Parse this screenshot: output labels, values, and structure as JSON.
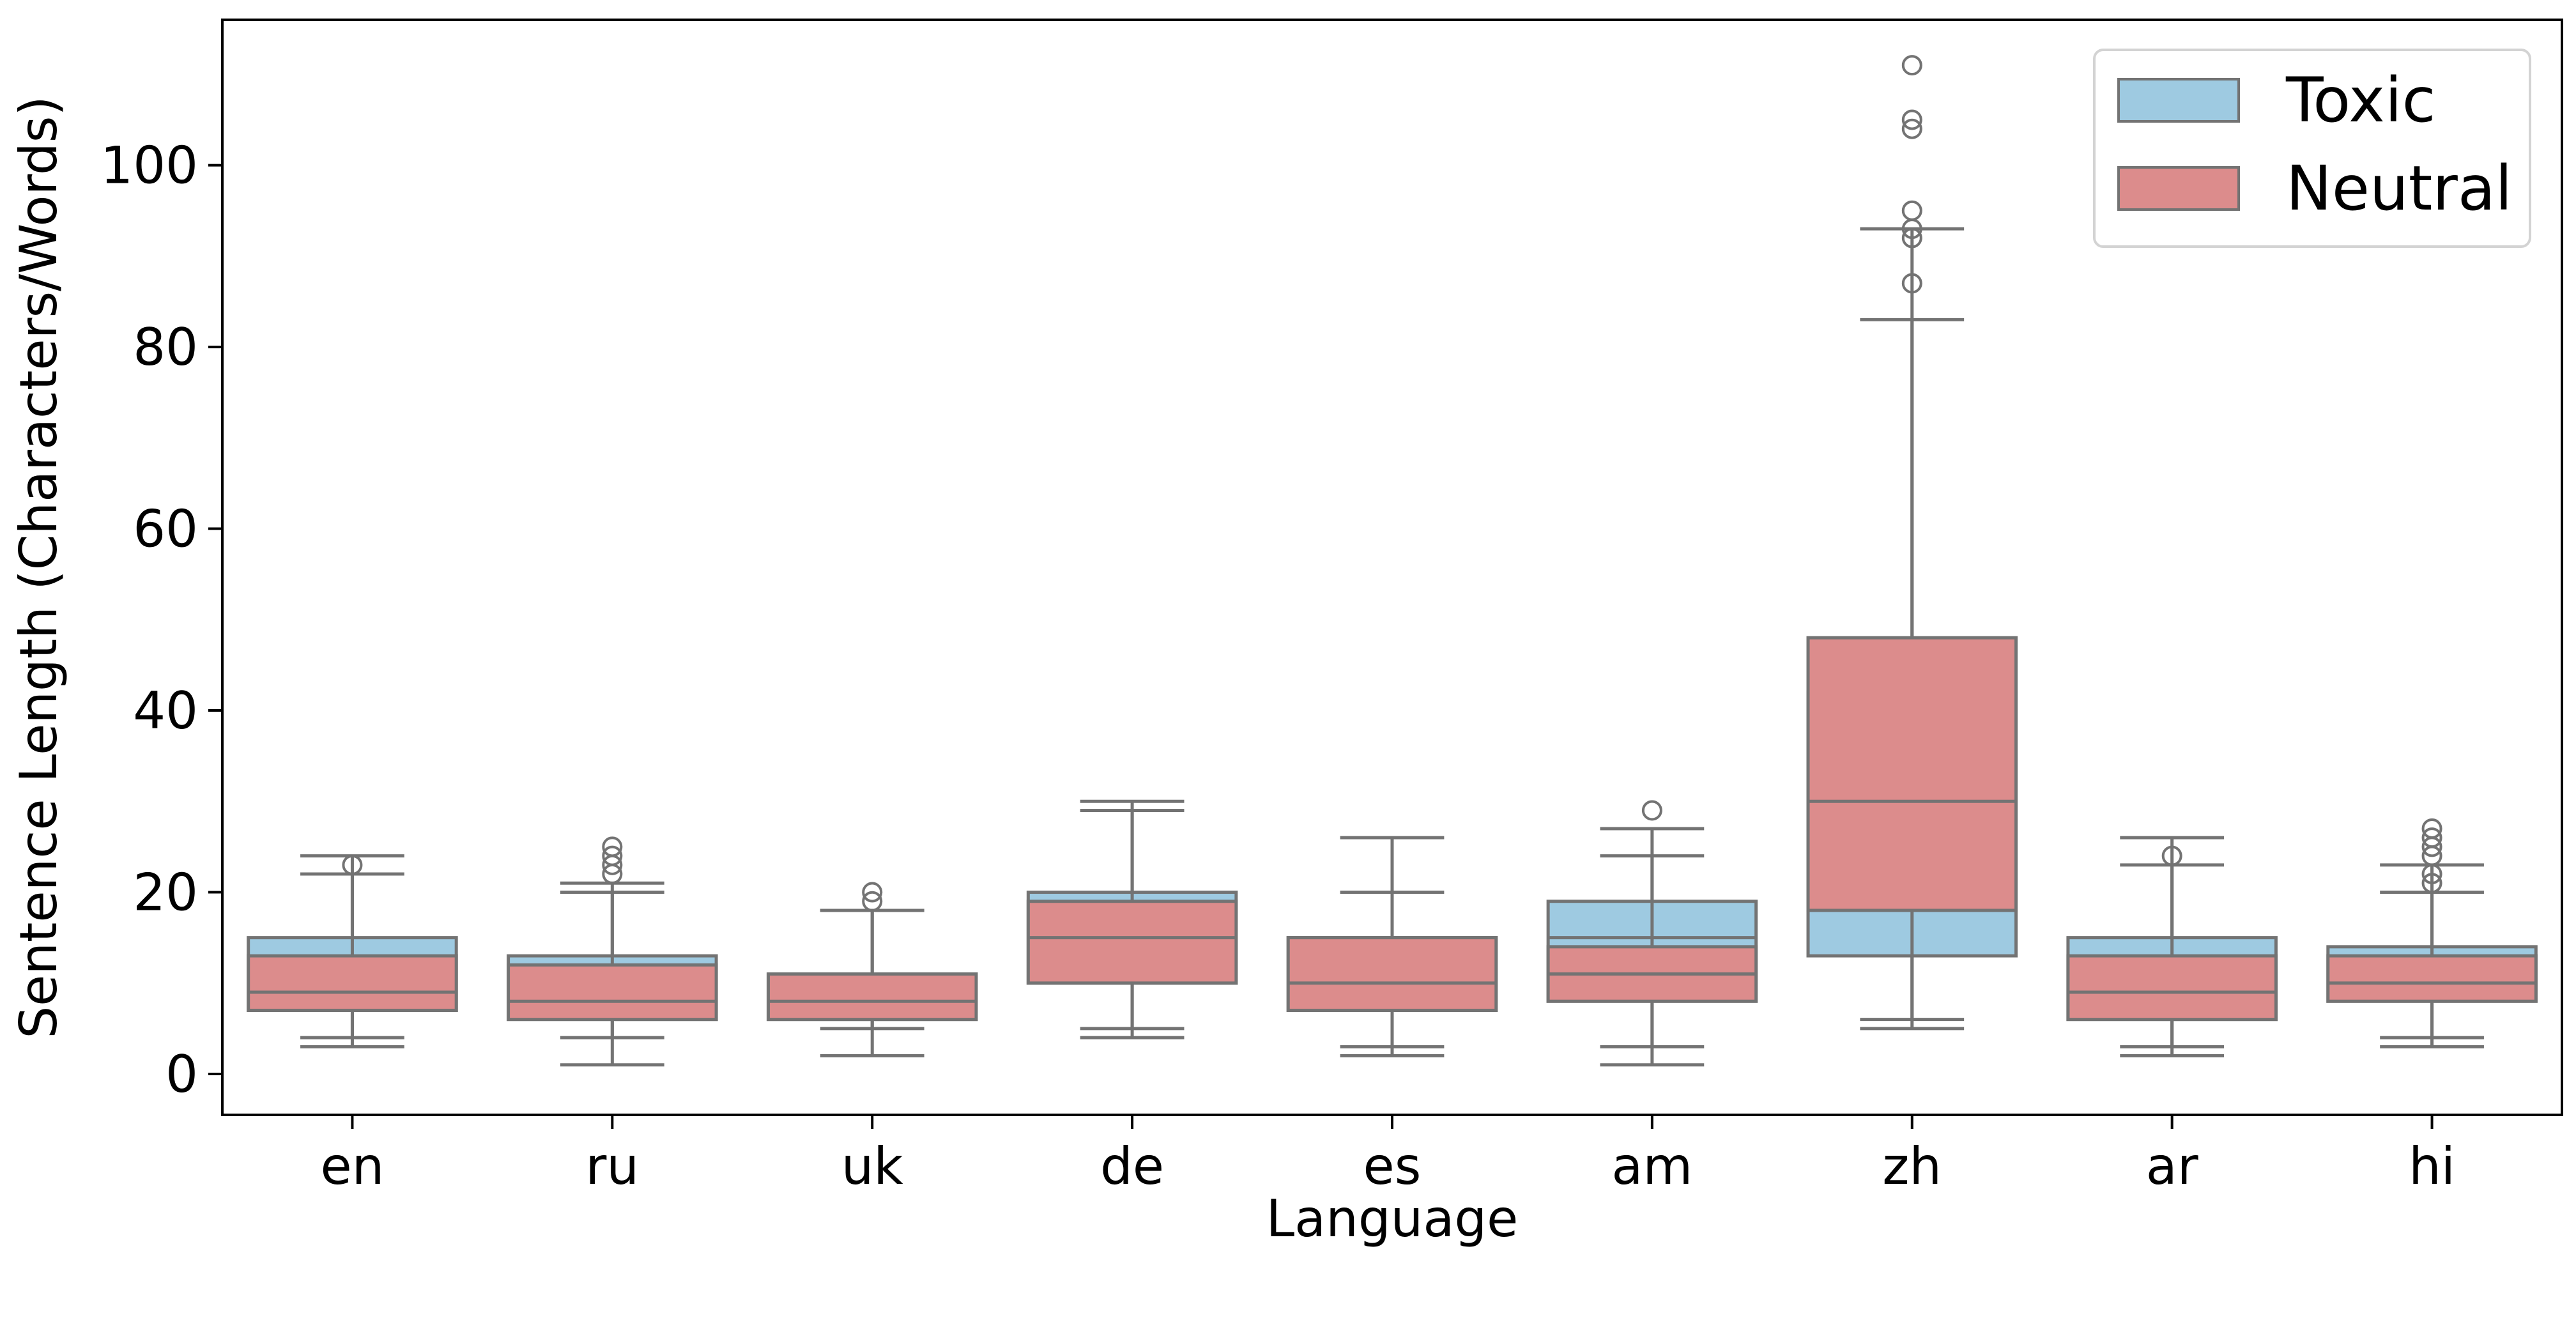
{
  "chart_data": {
    "type": "box",
    "title": "",
    "xlabel": "Language",
    "ylabel": "Sentence Length (Characters/Words)",
    "categories": [
      "en",
      "ru",
      "uk",
      "de",
      "es",
      "am",
      "zh",
      "ar",
      "hi"
    ],
    "ylim": [
      -4.5,
      116
    ],
    "yticks": [
      0,
      20,
      40,
      60,
      80,
      100
    ],
    "grid": false,
    "legend": {
      "position": "top-right",
      "entries": [
        "Toxic",
        "Neutral"
      ]
    },
    "series": [
      {
        "name": "Toxic",
        "color": "#9ecae1",
        "boxes": [
          {
            "whislo": 3,
            "q1": 7,
            "med": 10,
            "q3": 15,
            "whishi": 24,
            "fliers": []
          },
          {
            "whislo": 1,
            "q1": 6,
            "med": 9,
            "q3": 13,
            "whishi": 21,
            "fliers": []
          },
          {
            "whislo": 2,
            "q1": 6,
            "med": 8,
            "q3": 11,
            "whishi": 18,
            "fliers": []
          },
          {
            "whislo": 4,
            "q1": 10,
            "med": 16,
            "q3": 20,
            "whishi": 30,
            "fliers": []
          },
          {
            "whislo": 3,
            "q1": 7,
            "med": 12,
            "q3": 15,
            "whishi": 26,
            "fliers": []
          },
          {
            "whislo": 3,
            "q1": 8,
            "med": 15,
            "q3": 19,
            "whishi": 27,
            "fliers": [
              29
            ]
          },
          {
            "whislo": 6,
            "q1": 13,
            "med": 24,
            "q3": 42,
            "whishi": 83,
            "fliers": []
          },
          {
            "whislo": 3,
            "q1": 6,
            "med": 10,
            "q3": 15,
            "whishi": 26,
            "fliers": []
          },
          {
            "whislo": 4,
            "q1": 8,
            "med": 11,
            "q3": 14,
            "whishi": 23,
            "fliers": []
          }
        ]
      },
      {
        "name": "Neutral",
        "color": "#dc8c8c",
        "boxes": [
          {
            "whislo": 4,
            "q1": 7,
            "med": 9,
            "q3": 13,
            "whishi": 22,
            "fliers": [
              23
            ]
          },
          {
            "whislo": 4,
            "q1": 6,
            "med": 8,
            "q3": 12,
            "whishi": 20,
            "fliers": [
              22,
              23,
              24,
              25
            ]
          },
          {
            "whislo": 5,
            "q1": 6,
            "med": 8,
            "q3": 11,
            "whishi": 18,
            "fliers": [
              19,
              20
            ]
          },
          {
            "whislo": 5,
            "q1": 10,
            "med": 15,
            "q3": 19,
            "whishi": 29,
            "fliers": []
          },
          {
            "whislo": 2,
            "q1": 7,
            "med": 10,
            "q3": 15,
            "whishi": 20,
            "fliers": []
          },
          {
            "whislo": 1,
            "q1": 8,
            "med": 11,
            "q3": 14,
            "whishi": 24,
            "fliers": []
          },
          {
            "whislo": 5,
            "q1": 18,
            "med": 30,
            "q3": 48,
            "whishi": 93,
            "fliers": [
              87,
              92,
              93,
              95,
              104,
              105,
              111
            ]
          },
          {
            "whislo": 2,
            "q1": 6,
            "med": 9,
            "q3": 13,
            "whishi": 23,
            "fliers": [
              24
            ]
          },
          {
            "whislo": 3,
            "q1": 8,
            "med": 10,
            "q3": 13,
            "whishi": 20,
            "fliers": [
              21,
              22,
              24,
              25,
              26,
              27
            ]
          }
        ]
      }
    ]
  }
}
